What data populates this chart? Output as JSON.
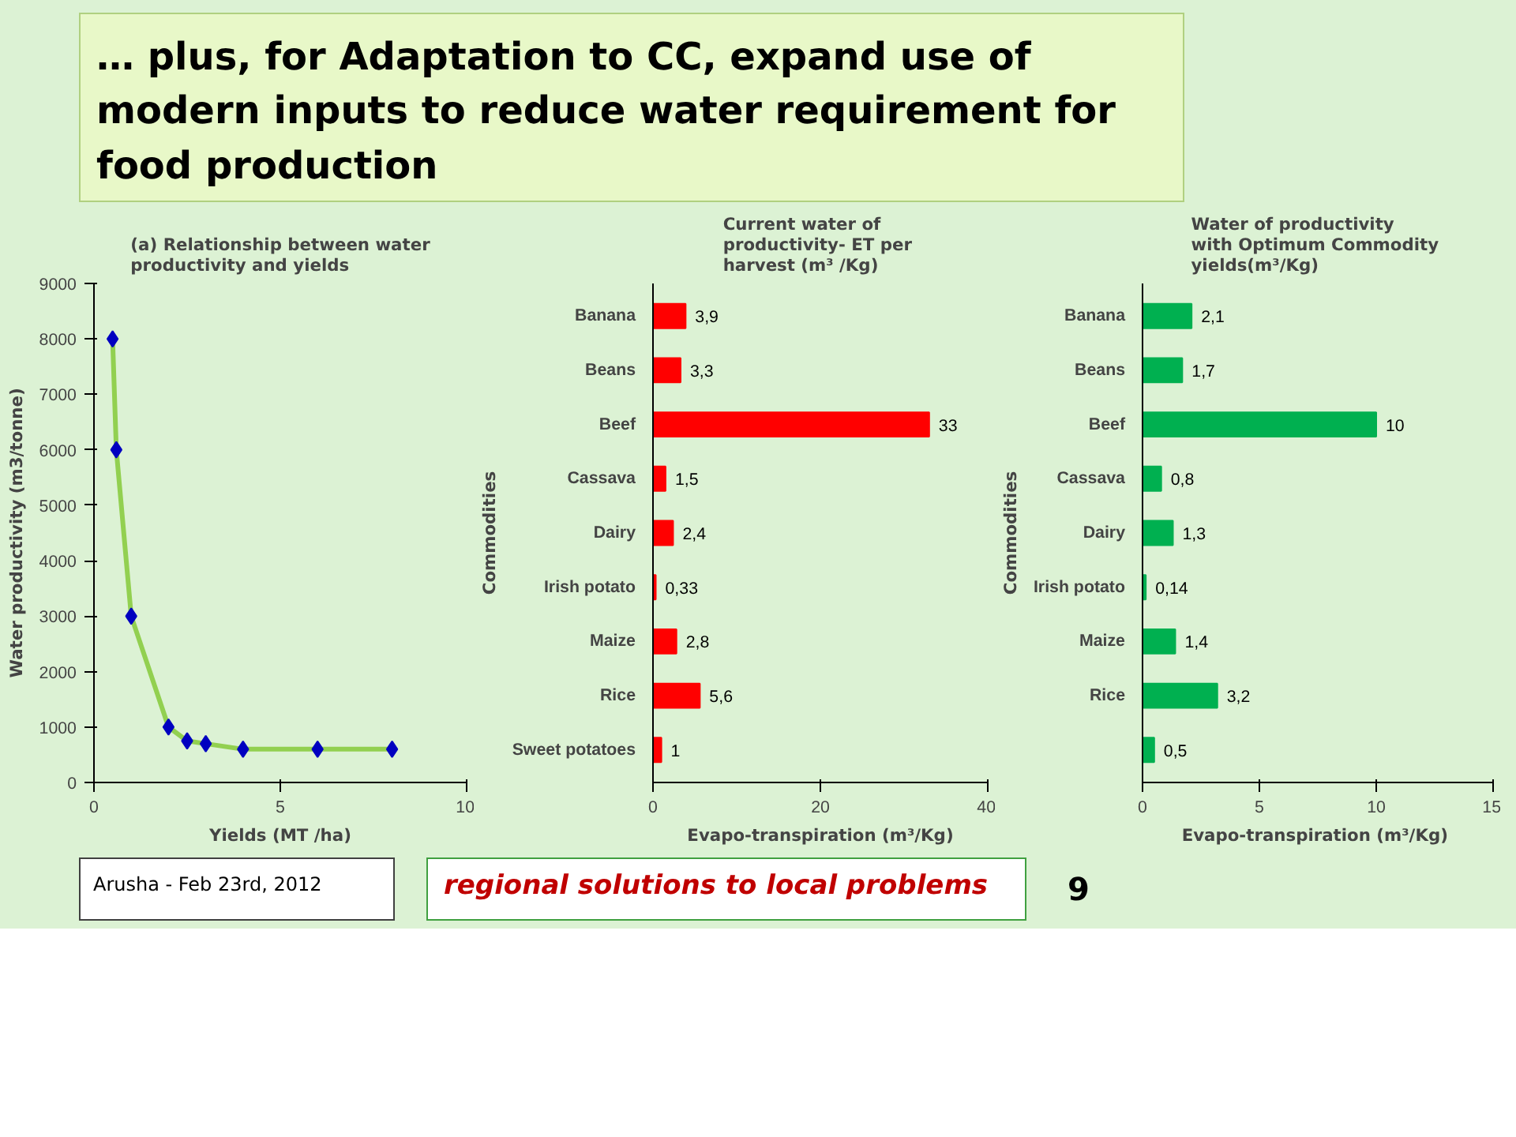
{
  "chart_data": [
    {
      "type": "scatter",
      "title": "(a) Relationship between water productivity and yields",
      "xlabel": "Yields (MT /ha)",
      "ylabel": "Water productivity (m3/tonne)",
      "xlim": [
        0,
        10
      ],
      "xticks": [
        0,
        5,
        10
      ],
      "ylim": [
        0,
        9000
      ],
      "yticks": [
        0,
        1000,
        2000,
        3000,
        4000,
        5000,
        6000,
        7000,
        8000,
        9000
      ],
      "grid": false,
      "series": [
        {
          "type": "line",
          "color": "#92d050",
          "marker": "none",
          "x": [
            0.5,
            0.6,
            1,
            2,
            2.5,
            3,
            4,
            6,
            8
          ],
          "values": [
            8000,
            6000,
            3000,
            1000,
            750,
            700,
            600,
            600,
            600
          ]
        },
        {
          "type": "scatter",
          "color": "#0000c0",
          "marker": "diamond",
          "x": [
            0.5,
            0.6,
            1,
            2,
            2.5,
            3,
            4,
            6,
            8
          ],
          "values": [
            8000,
            6000,
            3000,
            1000,
            750,
            700,
            600,
            600,
            600
          ]
        }
      ]
    },
    {
      "type": "bar",
      "orientation": "horizontal",
      "title": "Current water  of productivity-  ET per harvest (m³ /Kg)",
      "xlabel": "Evapo-transpiration (m³/Kg)",
      "ylabel": "Commodities",
      "categories": [
        "Banana",
        "Beans",
        "Beef",
        "Cassava",
        "Dairy",
        "Irish potato",
        "Maize",
        "Rice",
        "Sweet potatoes"
      ],
      "values": [
        3.9,
        3.3,
        33,
        1.5,
        2.4,
        0.33,
        2.8,
        5.6,
        1
      ],
      "value_labels": [
        "3,9",
        "3,3",
        "33",
        "1,5",
        "2,4",
        "0,33",
        "2,8",
        "5,6",
        "1"
      ],
      "color": "#ff0000",
      "xlim": [
        0,
        40
      ],
      "xticks": [
        0,
        20,
        40
      ],
      "grid": false
    },
    {
      "type": "bar",
      "orientation": "horizontal",
      "title": "Water of productivity  with Optimum  Commodity yields(m³/Kg)",
      "xlabel": "Evapo-transpiration  (m³/Kg)",
      "ylabel": "Commodities",
      "categories": [
        "Banana",
        "Beans",
        "Beef",
        "Cassava",
        "Dairy",
        "Irish potato",
        "Maize",
        "Rice",
        null
      ],
      "values": [
        2.1,
        1.7,
        10,
        0.8,
        1.3,
        0.14,
        1.4,
        3.2,
        0.5
      ],
      "value_labels": [
        "2,1",
        "1,7",
        "10",
        "0,8",
        "1,3",
        "0,14",
        "1,4",
        "3,2",
        "0,5"
      ],
      "color": "#00b050",
      "xlim": [
        0,
        15
      ],
      "xticks": [
        0,
        5,
        10,
        15
      ],
      "grid": false
    },
    {
      "type": "other",
      "title": "… plus, for Adaptation to CC, expand use of modern inputs to reduce water requirement for food production",
      "annotations": [
        "Arusha - Feb 23rd, 2012",
        "regional solutions to local problems",
        "9"
      ]
    }
  ]
}
